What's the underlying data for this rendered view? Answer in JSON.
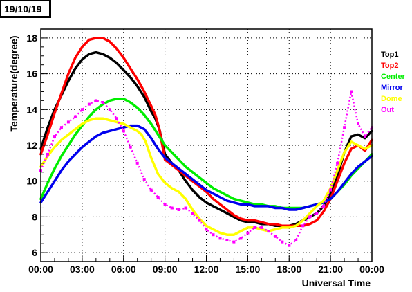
{
  "date_label": "19/10/19",
  "chart_data": {
    "type": "line",
    "title": "",
    "xlabel": "Universal Time",
    "ylabel": "Temperature(degree)",
    "xlim": [
      0,
      24
    ],
    "ylim": [
      5.5,
      18.5
    ],
    "x_ticks": [
      {
        "v": 0,
        "label": "00:00"
      },
      {
        "v": 3,
        "label": "03:00"
      },
      {
        "v": 6,
        "label": "06:00"
      },
      {
        "v": 9,
        "label": "09:00"
      },
      {
        "v": 12,
        "label": "12:00"
      },
      {
        "v": 15,
        "label": "15:00"
      },
      {
        "v": 18,
        "label": "18:00"
      },
      {
        "v": 21,
        "label": "21:00"
      },
      {
        "v": 24,
        "label": "00:00"
      }
    ],
    "y_ticks": [
      {
        "v": 6,
        "label": "6"
      },
      {
        "v": 8,
        "label": "8"
      },
      {
        "v": 10,
        "label": "10"
      },
      {
        "v": 12,
        "label": "12"
      },
      {
        "v": 14,
        "label": "14"
      },
      {
        "v": 16,
        "label": "16"
      },
      {
        "v": 18,
        "label": "18"
      }
    ],
    "grid": true,
    "legend_position": "right",
    "series": [
      {
        "name": "Top1",
        "color": "#000000",
        "x": [
          0,
          0.5,
          1,
          1.5,
          2,
          2.5,
          3,
          3.5,
          4,
          4.5,
          5,
          5.5,
          6,
          6.5,
          7,
          7.5,
          8,
          8.3,
          8.6,
          9,
          9.5,
          10,
          10.5,
          11,
          11.5,
          12,
          12.5,
          13,
          13.5,
          14,
          14.5,
          15,
          15.5,
          16,
          16.5,
          17,
          17.5,
          18,
          18.5,
          19,
          19.5,
          20,
          20.5,
          21,
          21.5,
          22,
          22.5,
          23,
          23.5,
          24
        ],
        "y": [
          11.8,
          13.0,
          14.0,
          14.8,
          15.6,
          16.3,
          16.8,
          17.1,
          17.2,
          17.1,
          16.9,
          16.6,
          16.2,
          15.8,
          15.3,
          14.7,
          13.9,
          13.5,
          12.9,
          11.5,
          11.0,
          10.6,
          10.0,
          9.5,
          9.1,
          8.8,
          8.6,
          8.4,
          8.2,
          8.0,
          7.8,
          7.7,
          7.7,
          7.6,
          7.6,
          7.5,
          7.5,
          7.5,
          7.6,
          7.8,
          8.0,
          8.2,
          8.6,
          9.3,
          10.3,
          11.6,
          12.5,
          12.6,
          12.4,
          12.8
        ]
      },
      {
        "name": "Top2",
        "color": "#ff0000",
        "x": [
          0,
          0.5,
          1,
          1.5,
          2,
          2.5,
          3,
          3.5,
          4,
          4.5,
          5,
          5.5,
          6,
          6.5,
          7,
          7.5,
          8,
          8.3,
          8.6,
          9,
          9.5,
          10,
          10.5,
          11,
          11.5,
          12,
          12.5,
          13,
          13.5,
          14,
          14.5,
          15,
          15.5,
          16,
          16.5,
          17,
          17.5,
          18,
          18.5,
          19,
          19.5,
          20,
          20.5,
          21,
          21.5,
          22,
          22.5,
          23,
          23.5,
          24
        ],
        "y": [
          11.5,
          12.6,
          13.8,
          14.9,
          16.0,
          16.9,
          17.5,
          17.9,
          18.0,
          18.0,
          17.8,
          17.4,
          16.9,
          16.3,
          15.7,
          15.0,
          14.2,
          13.7,
          12.9,
          11.2,
          10.9,
          10.6,
          10.3,
          10.0,
          9.7,
          9.4,
          9.0,
          8.7,
          8.4,
          8.1,
          7.9,
          7.8,
          7.8,
          7.7,
          7.6,
          7.6,
          7.5,
          7.5,
          7.5,
          7.5,
          7.6,
          7.8,
          8.3,
          9.0,
          10.0,
          11.0,
          11.8,
          12.0,
          11.7,
          12.3
        ]
      },
      {
        "name": "Center",
        "color": "#00ee00",
        "x": [
          0,
          0.5,
          1,
          1.5,
          2,
          2.5,
          3,
          3.5,
          4,
          4.5,
          5,
          5.5,
          6,
          6.5,
          7,
          7.5,
          8,
          8.5,
          9,
          9.5,
          10,
          10.5,
          11,
          11.5,
          12,
          12.5,
          13,
          13.5,
          14,
          14.5,
          15,
          15.5,
          16,
          16.5,
          17,
          17.5,
          18,
          18.5,
          19,
          19.5,
          20,
          20.5,
          21,
          21.5,
          22,
          22.5,
          23,
          23.5,
          24
        ],
        "y": [
          9.0,
          9.9,
          10.7,
          11.4,
          12.0,
          12.6,
          13.1,
          13.6,
          14.0,
          14.3,
          14.5,
          14.6,
          14.6,
          14.4,
          14.1,
          13.7,
          13.2,
          12.6,
          12.0,
          11.6,
          11.2,
          10.8,
          10.5,
          10.2,
          9.9,
          9.6,
          9.4,
          9.2,
          9.0,
          8.9,
          8.8,
          8.7,
          8.7,
          8.6,
          8.6,
          8.5,
          8.5,
          8.5,
          8.5,
          8.6,
          8.7,
          8.8,
          9.0,
          9.4,
          9.8,
          10.3,
          10.7,
          11.1,
          11.5
        ]
      },
      {
        "name": "Mirror",
        "color": "#0000ee",
        "x": [
          0,
          0.5,
          1,
          1.5,
          2,
          2.5,
          3,
          3.5,
          4,
          4.5,
          5,
          5.5,
          6,
          6.5,
          7,
          7.5,
          8,
          8.5,
          9,
          9.5,
          10,
          10.5,
          11,
          11.5,
          12,
          12.5,
          13,
          13.5,
          14,
          14.5,
          15,
          15.5,
          16,
          16.5,
          17,
          17.5,
          18,
          18.5,
          19,
          19.5,
          20,
          20.5,
          21,
          21.5,
          22,
          22.5,
          23,
          23.5,
          24
        ],
        "y": [
          8.8,
          9.4,
          10.0,
          10.6,
          11.1,
          11.5,
          11.9,
          12.2,
          12.5,
          12.7,
          12.8,
          12.9,
          13.0,
          13.1,
          13.1,
          12.9,
          12.4,
          11.8,
          11.3,
          11.0,
          10.7,
          10.4,
          10.1,
          9.8,
          9.5,
          9.3,
          9.1,
          8.9,
          8.8,
          8.7,
          8.7,
          8.6,
          8.6,
          8.6,
          8.5,
          8.5,
          8.4,
          8.4,
          8.5,
          8.6,
          8.7,
          8.8,
          9.0,
          9.4,
          9.9,
          10.4,
          10.8,
          11.1,
          11.4
        ]
      },
      {
        "name": "Dome",
        "color": "#ffff00",
        "x": [
          0,
          0.5,
          1,
          1.5,
          2,
          2.5,
          3,
          3.5,
          4,
          4.5,
          5,
          5.5,
          6,
          6.5,
          7,
          7.3,
          7.6,
          8,
          8.5,
          9,
          9.5,
          10,
          10.5,
          11,
          11.5,
          12,
          12.5,
          13,
          13.5,
          14,
          14.5,
          15,
          15.5,
          16,
          16.5,
          17,
          17.5,
          18,
          18.5,
          19,
          19.5,
          20,
          20.5,
          21,
          21.5,
          22,
          22.5,
          23,
          23.5,
          24
        ],
        "y": [
          10.8,
          11.4,
          11.9,
          12.3,
          12.6,
          12.9,
          13.2,
          13.4,
          13.5,
          13.5,
          13.4,
          13.3,
          13.2,
          13.0,
          12.8,
          12.6,
          12.2,
          11.3,
          10.4,
          9.9,
          9.6,
          9.4,
          9.0,
          8.4,
          7.9,
          7.5,
          7.3,
          7.1,
          7.0,
          7.0,
          7.2,
          7.4,
          7.4,
          7.3,
          7.2,
          7.3,
          7.4,
          7.4,
          7.5,
          7.8,
          8.2,
          8.6,
          8.9,
          9.6,
          10.6,
          11.6,
          12.2,
          12.0,
          11.8,
          12.0
        ]
      },
      {
        "name": "Out",
        "color": "#ff00ff",
        "x": [
          0,
          0.5,
          1,
          1.5,
          2,
          2.5,
          3,
          3.5,
          4,
          4.5,
          5,
          5.5,
          6,
          6.5,
          7,
          7.5,
          8,
          8.5,
          9,
          9.5,
          10,
          10.5,
          11,
          11.5,
          12,
          12.5,
          13,
          13.5,
          14,
          14.5,
          15,
          15.5,
          16,
          16.5,
          17,
          17.5,
          18,
          18.5,
          19,
          19.5,
          20,
          20.5,
          21,
          21.5,
          22,
          22.5,
          23,
          23.5,
          24
        ],
        "y": [
          10.6,
          11.5,
          12.5,
          13.0,
          13.3,
          13.6,
          14.0,
          14.3,
          14.5,
          14.4,
          14.0,
          13.5,
          12.8,
          11.9,
          11.0,
          10.1,
          9.5,
          9.1,
          8.7,
          8.5,
          8.4,
          8.5,
          8.2,
          7.8,
          7.3,
          7.0,
          6.8,
          6.7,
          6.6,
          6.8,
          7.1,
          7.4,
          7.4,
          7.2,
          6.9,
          6.6,
          6.4,
          6.7,
          7.5,
          8.0,
          8.2,
          8.6,
          9.5,
          11.0,
          13.0,
          15.0,
          13.2,
          12.5,
          13.0
        ]
      }
    ]
  }
}
